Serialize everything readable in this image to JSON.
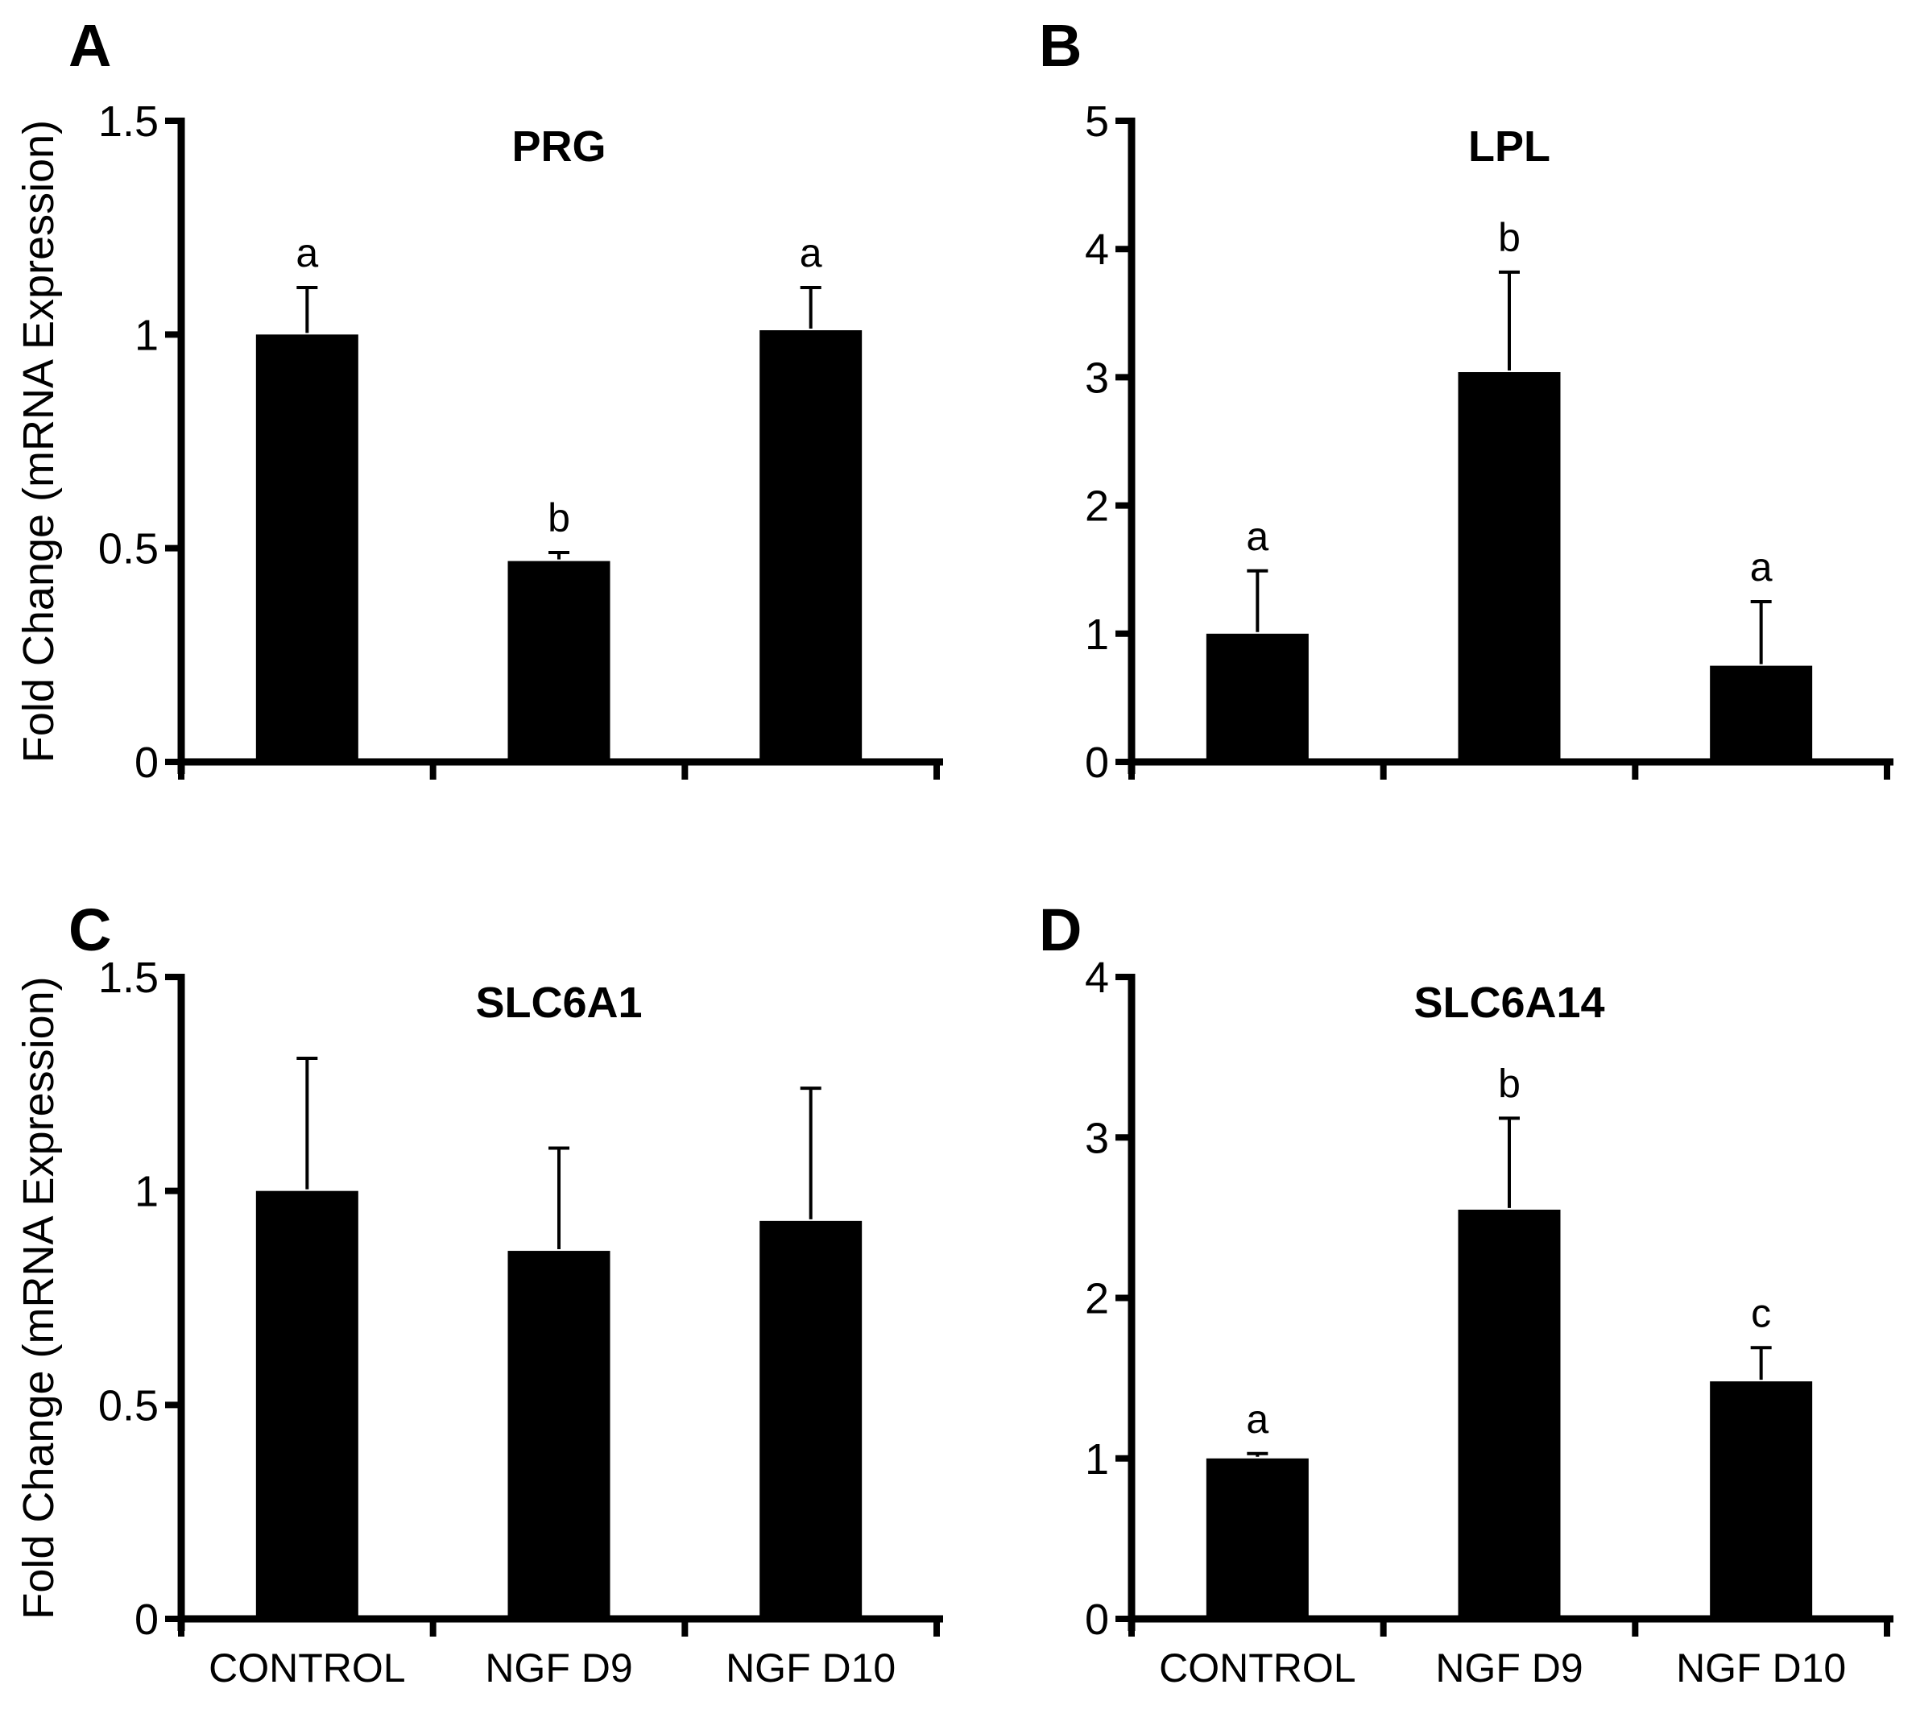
{
  "figure": {
    "background_color": "#ffffff",
    "ink_color": "#000000",
    "bar_color": "#000000",
    "shared_ylabel": "Fold Change (mRNA Expression)",
    "shared_categories": [
      "CONTROL",
      "NGF D9",
      "NGF D10"
    ]
  },
  "chart_data": [
    {
      "panel_letter": "A",
      "type": "bar",
      "title": "PRG",
      "ylabel": "Fold Change (mRNA Expression)",
      "xlabel": "",
      "categories": [
        "CONTROL",
        "NGF D9",
        "NGF D10"
      ],
      "values": [
        1.0,
        0.47,
        1.01
      ],
      "errors_up": [
        0.11,
        0.02,
        0.1
      ],
      "sig_letters": [
        "a",
        "b",
        "a"
      ],
      "ylim": [
        0,
        1.5
      ],
      "yticks": [
        0,
        0.5,
        1,
        1.5
      ],
      "ytick_labels": [
        "0",
        "0.5",
        "1",
        "1.5"
      ],
      "bar_color": "#000000",
      "grid": false,
      "legend": "none",
      "show_x_tick_labels": false
    },
    {
      "panel_letter": "B",
      "type": "bar",
      "title": "LPL",
      "ylabel": "",
      "xlabel": "",
      "categories": [
        "CONTROL",
        "NGF D9",
        "NGF D10"
      ],
      "values": [
        1.0,
        3.04,
        0.75
      ],
      "errors_up": [
        0.49,
        0.78,
        0.5
      ],
      "sig_letters": [
        "a",
        "b",
        "a"
      ],
      "ylim": [
        0,
        5
      ],
      "yticks": [
        0,
        1,
        2,
        3,
        4,
        5
      ],
      "ytick_labels": [
        "0",
        "1",
        "2",
        "3",
        "4",
        "5"
      ],
      "bar_color": "#000000",
      "grid": false,
      "legend": "none",
      "show_x_tick_labels": false
    },
    {
      "panel_letter": "C",
      "type": "bar",
      "title": "SLC6A1",
      "ylabel": "Fold Change (mRNA Expression)",
      "xlabel": "",
      "categories": [
        "CONTROL",
        "NGF D9",
        "NGF D10"
      ],
      "values": [
        1.0,
        0.86,
        0.93
      ],
      "errors_up": [
        0.31,
        0.24,
        0.31
      ],
      "sig_letters": [
        "",
        "",
        ""
      ],
      "ylim": [
        0,
        1.5
      ],
      "yticks": [
        0,
        0.5,
        1,
        1.5
      ],
      "ytick_labels": [
        "0",
        "0.5",
        "1",
        "1.5"
      ],
      "bar_color": "#000000",
      "grid": false,
      "legend": "none",
      "show_x_tick_labels": true
    },
    {
      "panel_letter": "D",
      "type": "bar",
      "title": "SLC6A14",
      "ylabel": "",
      "xlabel": "",
      "categories": [
        "CONTROL",
        "NGF D9",
        "NGF D10"
      ],
      "values": [
        1.0,
        2.55,
        1.48
      ],
      "errors_up": [
        0.03,
        0.57,
        0.21
      ],
      "sig_letters": [
        "a",
        "b",
        "c"
      ],
      "ylim": [
        0,
        4
      ],
      "yticks": [
        0,
        1,
        2,
        3,
        4
      ],
      "ytick_labels": [
        "0",
        "1",
        "2",
        "3",
        "4"
      ],
      "bar_color": "#000000",
      "grid": false,
      "legend": "none",
      "show_x_tick_labels": true
    }
  ]
}
